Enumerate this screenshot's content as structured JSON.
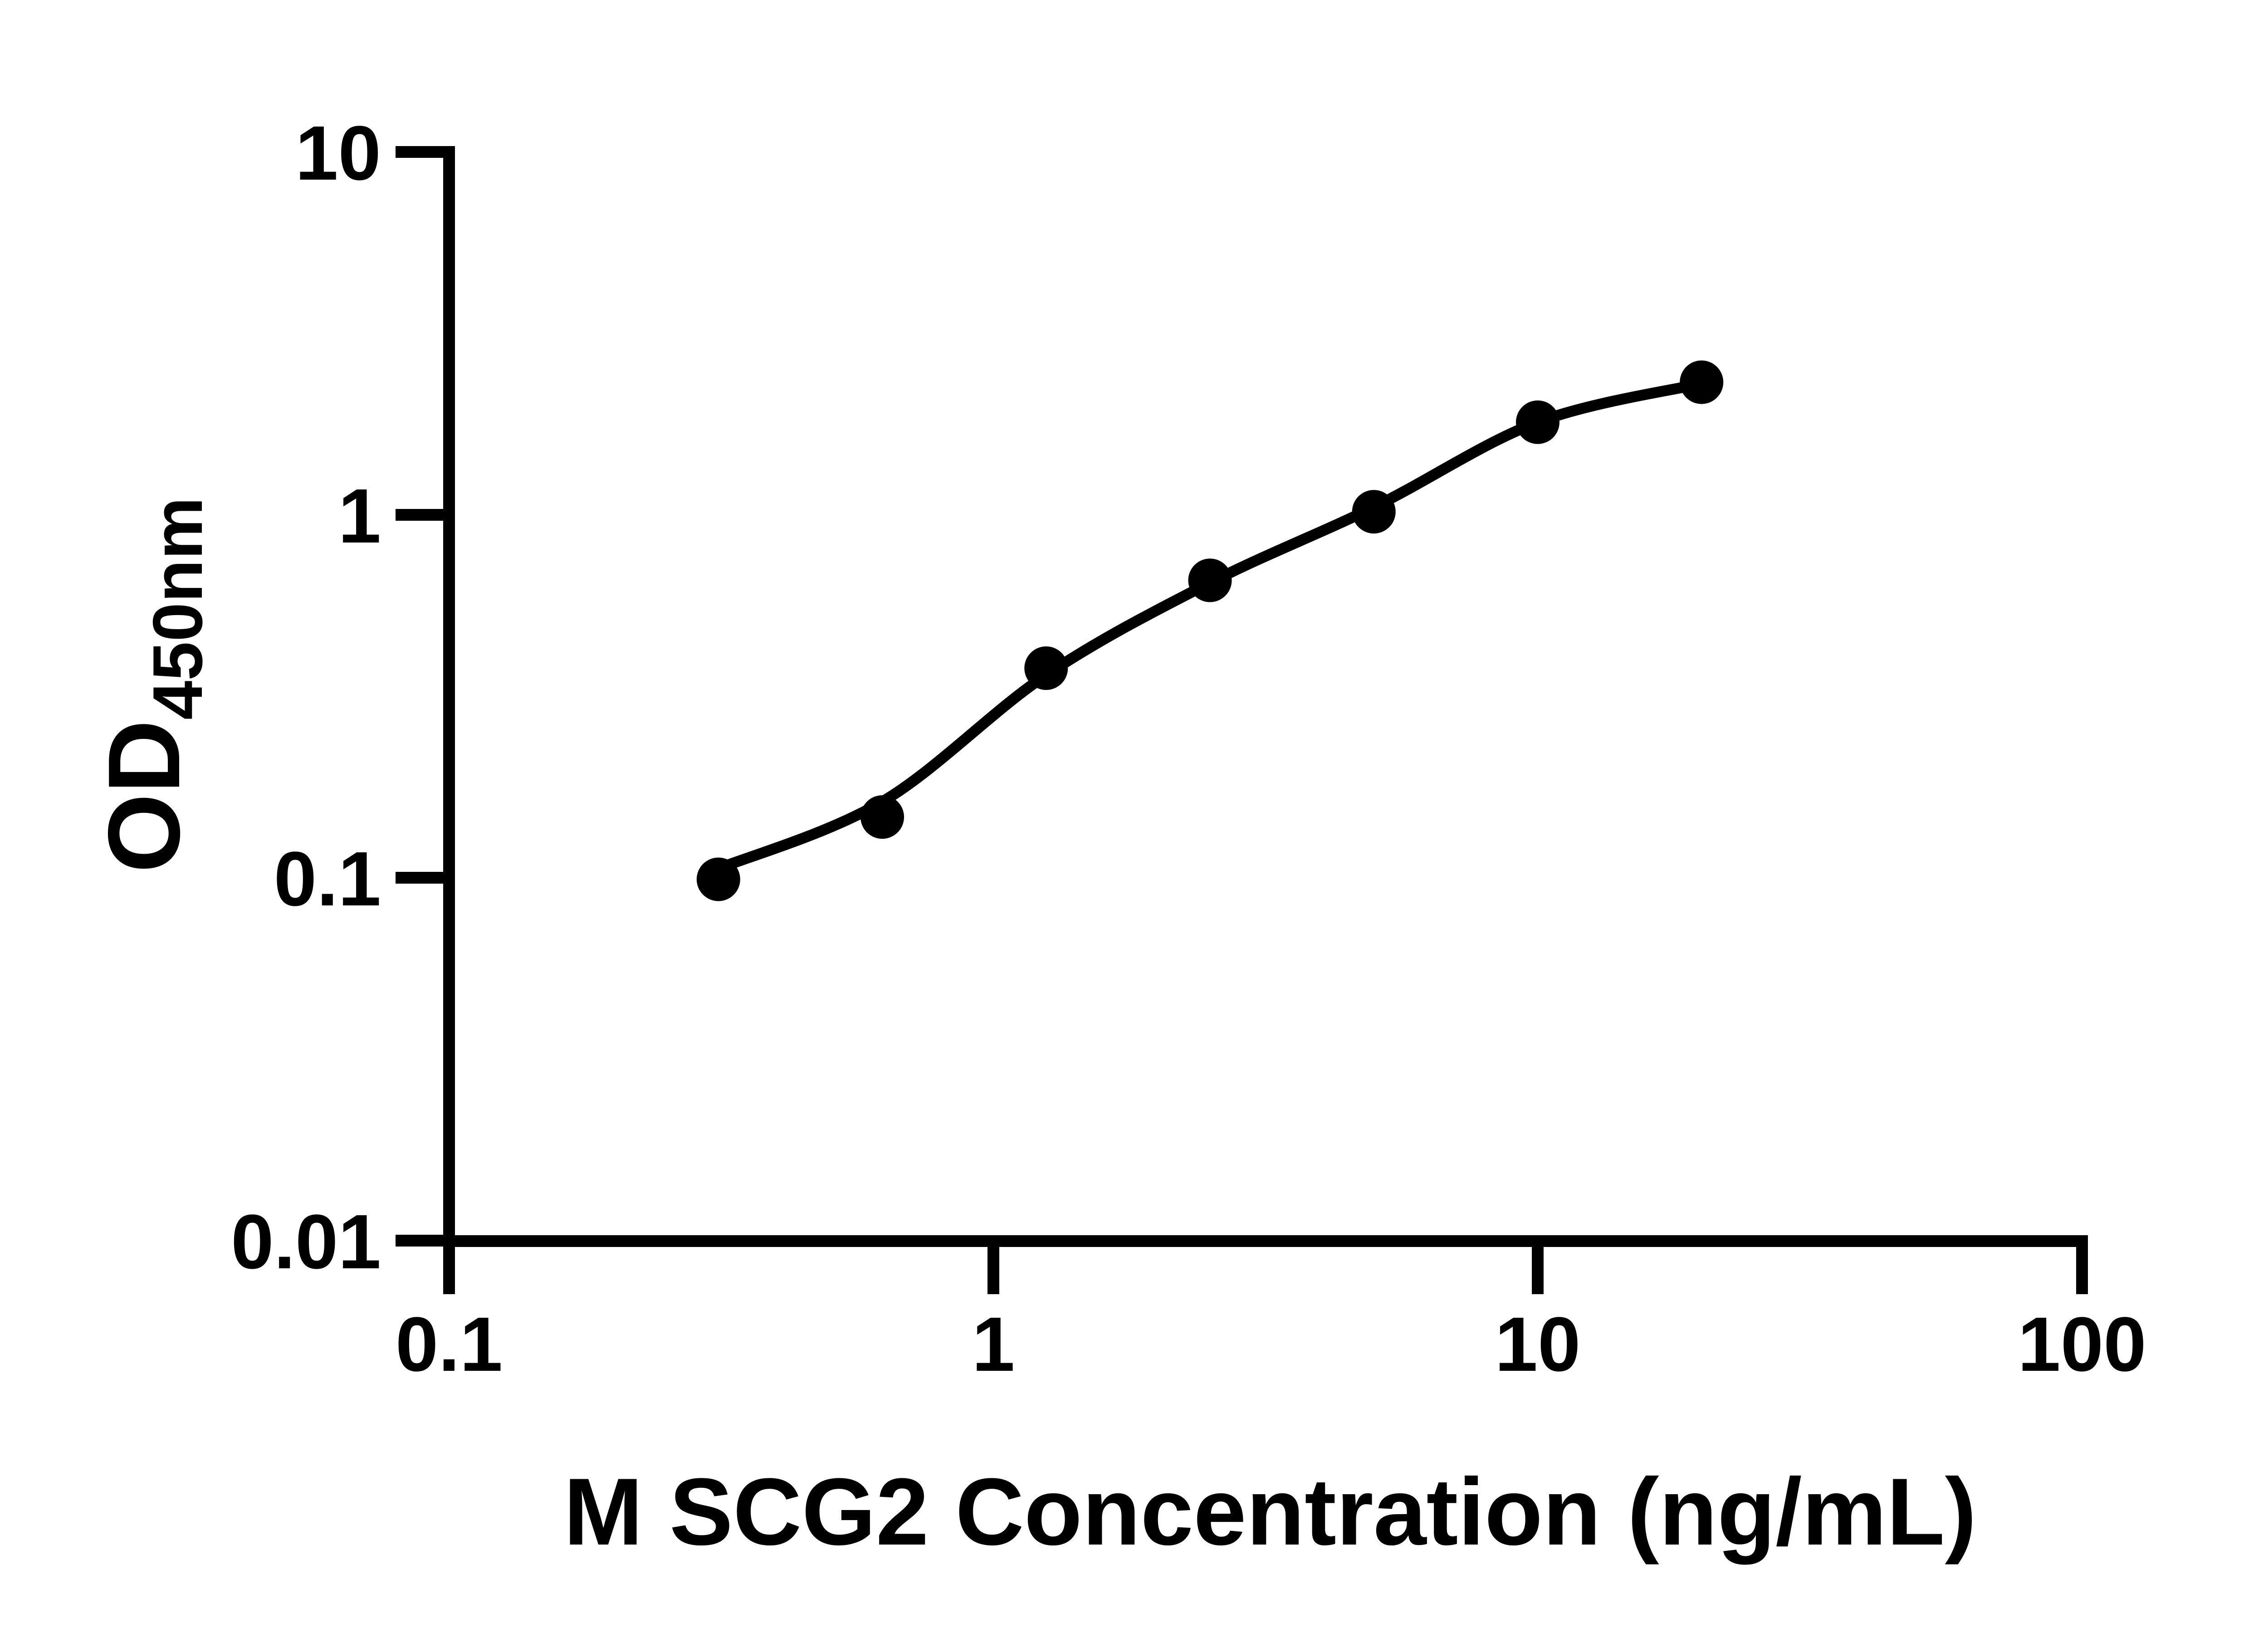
{
  "page": {
    "background": "#ffffff"
  },
  "chart_data": {
    "type": "scatter",
    "title": "",
    "xlabel": "M SCG2 Concentration (ng/mL)",
    "ylabel": "OD450nm",
    "ylabel_main": "OD",
    "ylabel_sub": "450nm",
    "x_scale": "log",
    "y_scale": "log",
    "xlim": [
      0.1,
      100
    ],
    "ylim": [
      0.01,
      10
    ],
    "grid": false,
    "legend_position": "none",
    "x_ticks": {
      "values": [
        0.1,
        1,
        10,
        100
      ],
      "labels": [
        "0.1",
        "1",
        "10",
        "100"
      ]
    },
    "y_ticks": {
      "values": [
        10,
        1,
        0.1,
        0.01
      ],
      "labels": [
        "10",
        "1",
        "0.1",
        "0.01"
      ]
    },
    "series": [
      {
        "marker": "filled-circle",
        "x": [
          0.3125,
          0.625,
          1.25,
          2.5,
          5,
          10,
          20
        ],
        "y": [
          0.099,
          0.147,
          0.378,
          0.66,
          1.02,
          1.8,
          2.32
        ],
        "fit_y": [
          0.106,
          0.162,
          0.362,
          0.65,
          1.05,
          1.8,
          2.3
        ]
      }
    ],
    "colors": {
      "ink": "#000000",
      "background": "#ffffff"
    }
  }
}
